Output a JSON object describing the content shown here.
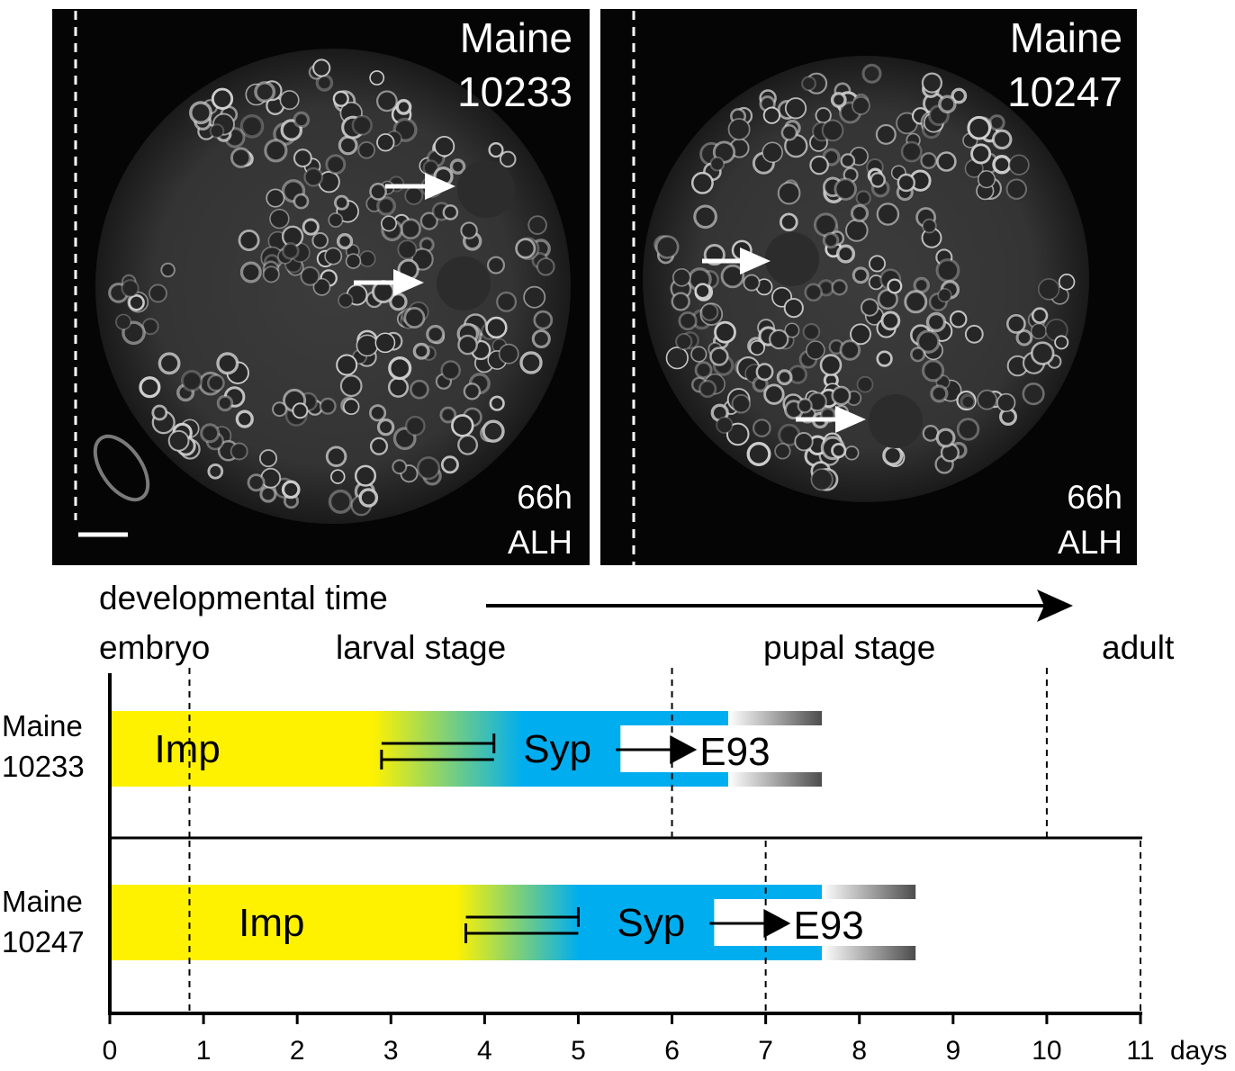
{
  "panels": [
    {
      "id": "maine-10233",
      "title_line1": "Maine",
      "title_line2": "10233",
      "time_line1": "66h",
      "time_line2": "ALH"
    },
    {
      "id": "maine-10247",
      "title_line1": "Maine",
      "title_line2": "10247",
      "time_line1": "66h",
      "time_line2": "ALH"
    }
  ],
  "timeline": {
    "dev_time_label": "developmental time",
    "stage_labels": {
      "embryo": "embryo",
      "larval": "larval stage",
      "pupal": "pupal stage",
      "adult": "adult"
    },
    "x_axis": {
      "min": 0,
      "max": 11,
      "ticks": [
        0,
        1,
        2,
        3,
        4,
        5,
        6,
        7,
        8,
        9,
        10,
        11
      ],
      "tick_labels": [
        "0",
        "1",
        "2",
        "3",
        "4",
        "5",
        "6",
        "7",
        "8",
        "9",
        "10",
        "11"
      ],
      "unit_label": "days"
    },
    "rows": [
      {
        "label_line1": "Maine",
        "label_line2": "10233",
        "embryo_end": 0.85,
        "pupation": 6.0,
        "eclosion": 10.0,
        "imp_solid_end": 2.8,
        "syp_solid_start": 4.4,
        "syp_end": 6.6,
        "fade_end": 7.6,
        "bracket_start": 2.9,
        "bracket_end": 4.1,
        "e93_onset": 5.45,
        "imp_label": "Imp",
        "syp_label": "Syp",
        "e93_label": "E93"
      },
      {
        "label_line1": "Maine",
        "label_line2": "10247",
        "embryo_end": 0.85,
        "pupation": 7.0,
        "eclosion": 11.0,
        "imp_solid_end": 3.7,
        "syp_solid_start": 5.0,
        "syp_end": 7.6,
        "fade_end": 8.6,
        "bracket_start": 3.8,
        "bracket_end": 5.0,
        "e93_onset": 6.45,
        "imp_label": "Imp",
        "syp_label": "Syp",
        "e93_label": "E93"
      }
    ]
  },
  "colors": {
    "imp": "#fff200",
    "syp": "#00aeef",
    "micrograph_bg": "#050505",
    "cells": "#d8d8d8"
  }
}
